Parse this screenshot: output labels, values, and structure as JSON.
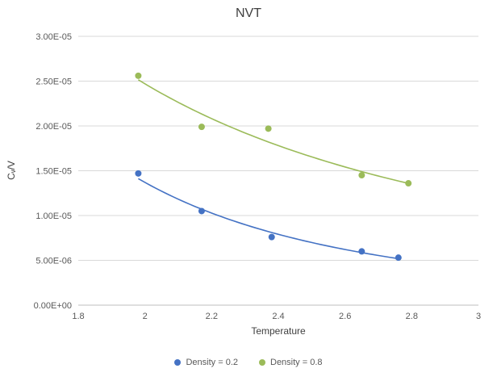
{
  "chart_data": {
    "type": "scatter",
    "title": "NVT",
    "xlabel": "Temperature",
    "ylabel": "Cᵥ/V",
    "xlim": [
      1.8,
      3
    ],
    "ylim": [
      0,
      3e-05
    ],
    "xticks": [
      1.8,
      2,
      2.2,
      2.4,
      2.6,
      2.8,
      3
    ],
    "xtick_labels": [
      "1.8",
      "2",
      "2.2",
      "2.4",
      "2.6",
      "2.8",
      "3"
    ],
    "yticks": [
      0,
      5e-06,
      1e-05,
      1.5e-05,
      2e-05,
      2.5e-05,
      3e-05
    ],
    "ytick_labels": [
      "0.00E+00",
      "5.00E-06",
      "1.00E-05",
      "1.50E-05",
      "2.00E-05",
      "2.50E-05",
      "3.00E-05"
    ],
    "grid": "horizontal",
    "gridline_color": "#d9d9d9",
    "axis_line_color": "#bfbfbf",
    "tick_label_color": "#595959",
    "legend_position": "bottom",
    "series": [
      {
        "name": "Density = 0.2",
        "color": "#4472c4",
        "marker": "circle",
        "trendline": "power",
        "points": [
          [
            1.98,
            1.47e-05
          ],
          [
            2.17,
            1.05e-05
          ],
          [
            2.38,
            7.6e-06
          ],
          [
            2.65,
            6e-06
          ],
          [
            2.76,
            5.3e-06
          ]
        ]
      },
      {
        "name": "Density = 0.8",
        "color": "#9bbb59",
        "marker": "circle",
        "trendline": "power",
        "points": [
          [
            1.98,
            2.56e-05
          ],
          [
            2.17,
            1.99e-05
          ],
          [
            2.37,
            1.97e-05
          ],
          [
            2.65,
            1.45e-05
          ],
          [
            2.79,
            1.36e-05
          ]
        ]
      }
    ]
  }
}
